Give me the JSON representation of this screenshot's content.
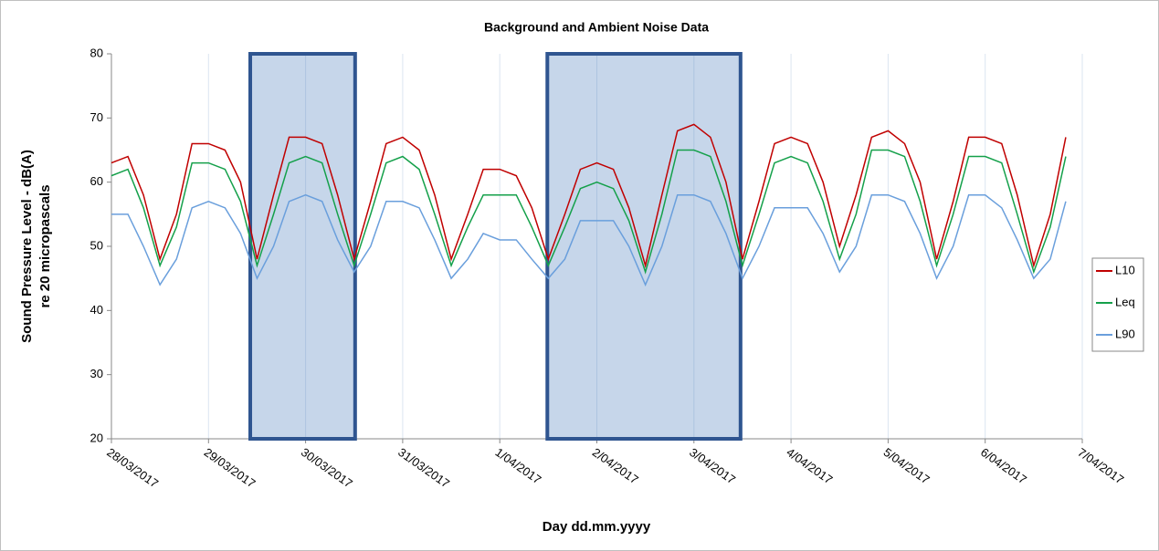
{
  "chart_data": {
    "type": "line",
    "title": "Background and Ambient Noise Data",
    "xlabel": "Day dd.mm.yyyy",
    "ylabel": [
      "Sound Pressure Level - dB(A)",
      "re 20 micropascals"
    ],
    "x": [
      0,
      0.17,
      0.33,
      0.5,
      0.67,
      0.83,
      1,
      1.17,
      1.33,
      1.5,
      1.67,
      1.83,
      2,
      2.17,
      2.33,
      2.5,
      2.67,
      2.83,
      3,
      3.17,
      3.33,
      3.5,
      3.67,
      3.83,
      4,
      4.17,
      4.33,
      4.5,
      4.67,
      4.83,
      5,
      5.17,
      5.33,
      5.5,
      5.67,
      5.83,
      6,
      6.17,
      6.33,
      6.5,
      6.67,
      6.83,
      7,
      7.17,
      7.33,
      7.5,
      7.67,
      7.83,
      8,
      8.17,
      8.33,
      8.5,
      8.67,
      8.83,
      9,
      9.17,
      9.33,
      9.5,
      9.67,
      9.83
    ],
    "series": [
      {
        "name": "L10",
        "color": "#c00000",
        "values": [
          63,
          64,
          58,
          48,
          55,
          66,
          66,
          65,
          60,
          48,
          58,
          67,
          67,
          66,
          58,
          48,
          57,
          66,
          67,
          65,
          58,
          48,
          55,
          62,
          62,
          61,
          56,
          48,
          55,
          62,
          63,
          62,
          56,
          47,
          58,
          68,
          69,
          67,
          60,
          48,
          57,
          66,
          67,
          66,
          60,
          50,
          58,
          67,
          68,
          66,
          60,
          48,
          57,
          67,
          67,
          66,
          58,
          47,
          55,
          67
        ]
      },
      {
        "name": "Leq",
        "color": "#14a04a",
        "values": [
          61,
          62,
          56,
          47,
          53,
          63,
          63,
          62,
          57,
          47,
          55,
          63,
          64,
          63,
          55,
          47,
          55,
          63,
          64,
          62,
          55,
          47,
          53,
          58,
          58,
          58,
          53,
          47,
          53,
          59,
          60,
          59,
          54,
          46,
          55,
          65,
          65,
          64,
          57,
          47,
          55,
          63,
          64,
          63,
          57,
          48,
          55,
          65,
          65,
          64,
          57,
          47,
          55,
          64,
          64,
          63,
          55,
          46,
          53,
          64
        ]
      },
      {
        "name": "L90",
        "color": "#6a9fdc",
        "values": [
          55,
          55,
          50,
          44,
          48,
          56,
          57,
          56,
          52,
          45,
          50,
          57,
          58,
          57,
          51,
          46,
          50,
          57,
          57,
          56,
          51,
          45,
          48,
          52,
          51,
          51,
          48,
          45,
          48,
          54,
          54,
          54,
          50,
          44,
          50,
          58,
          58,
          57,
          52,
          45,
          50,
          56,
          56,
          56,
          52,
          46,
          50,
          58,
          58,
          57,
          52,
          45,
          50,
          58,
          58,
          56,
          51,
          45,
          48,
          57
        ]
      }
    ],
    "highlight_ranges": [
      [
        1.43,
        2.51
      ],
      [
        4.49,
        6.48
      ]
    ],
    "xlim": [
      0,
      10
    ],
    "xticks": [
      {
        "value": 0,
        "label": "28/03/2017"
      },
      {
        "value": 1,
        "label": "29/03/2017"
      },
      {
        "value": 2,
        "label": "30/03/2017"
      },
      {
        "value": 3,
        "label": "31/03/2017"
      },
      {
        "value": 4,
        "label": "1/04/2017"
      },
      {
        "value": 5,
        "label": "2/04/2017"
      },
      {
        "value": 6,
        "label": "3/04/2017"
      },
      {
        "value": 7,
        "label": "4/04/2017"
      },
      {
        "value": 8,
        "label": "5/04/2017"
      },
      {
        "value": 9,
        "label": "6/04/2017"
      },
      {
        "value": 10,
        "label": "7/04/2017"
      }
    ],
    "ylim": [
      20,
      80
    ],
    "yticks": [
      20,
      30,
      40,
      50,
      60,
      70,
      80
    ],
    "grid": true,
    "legend": "right"
  }
}
